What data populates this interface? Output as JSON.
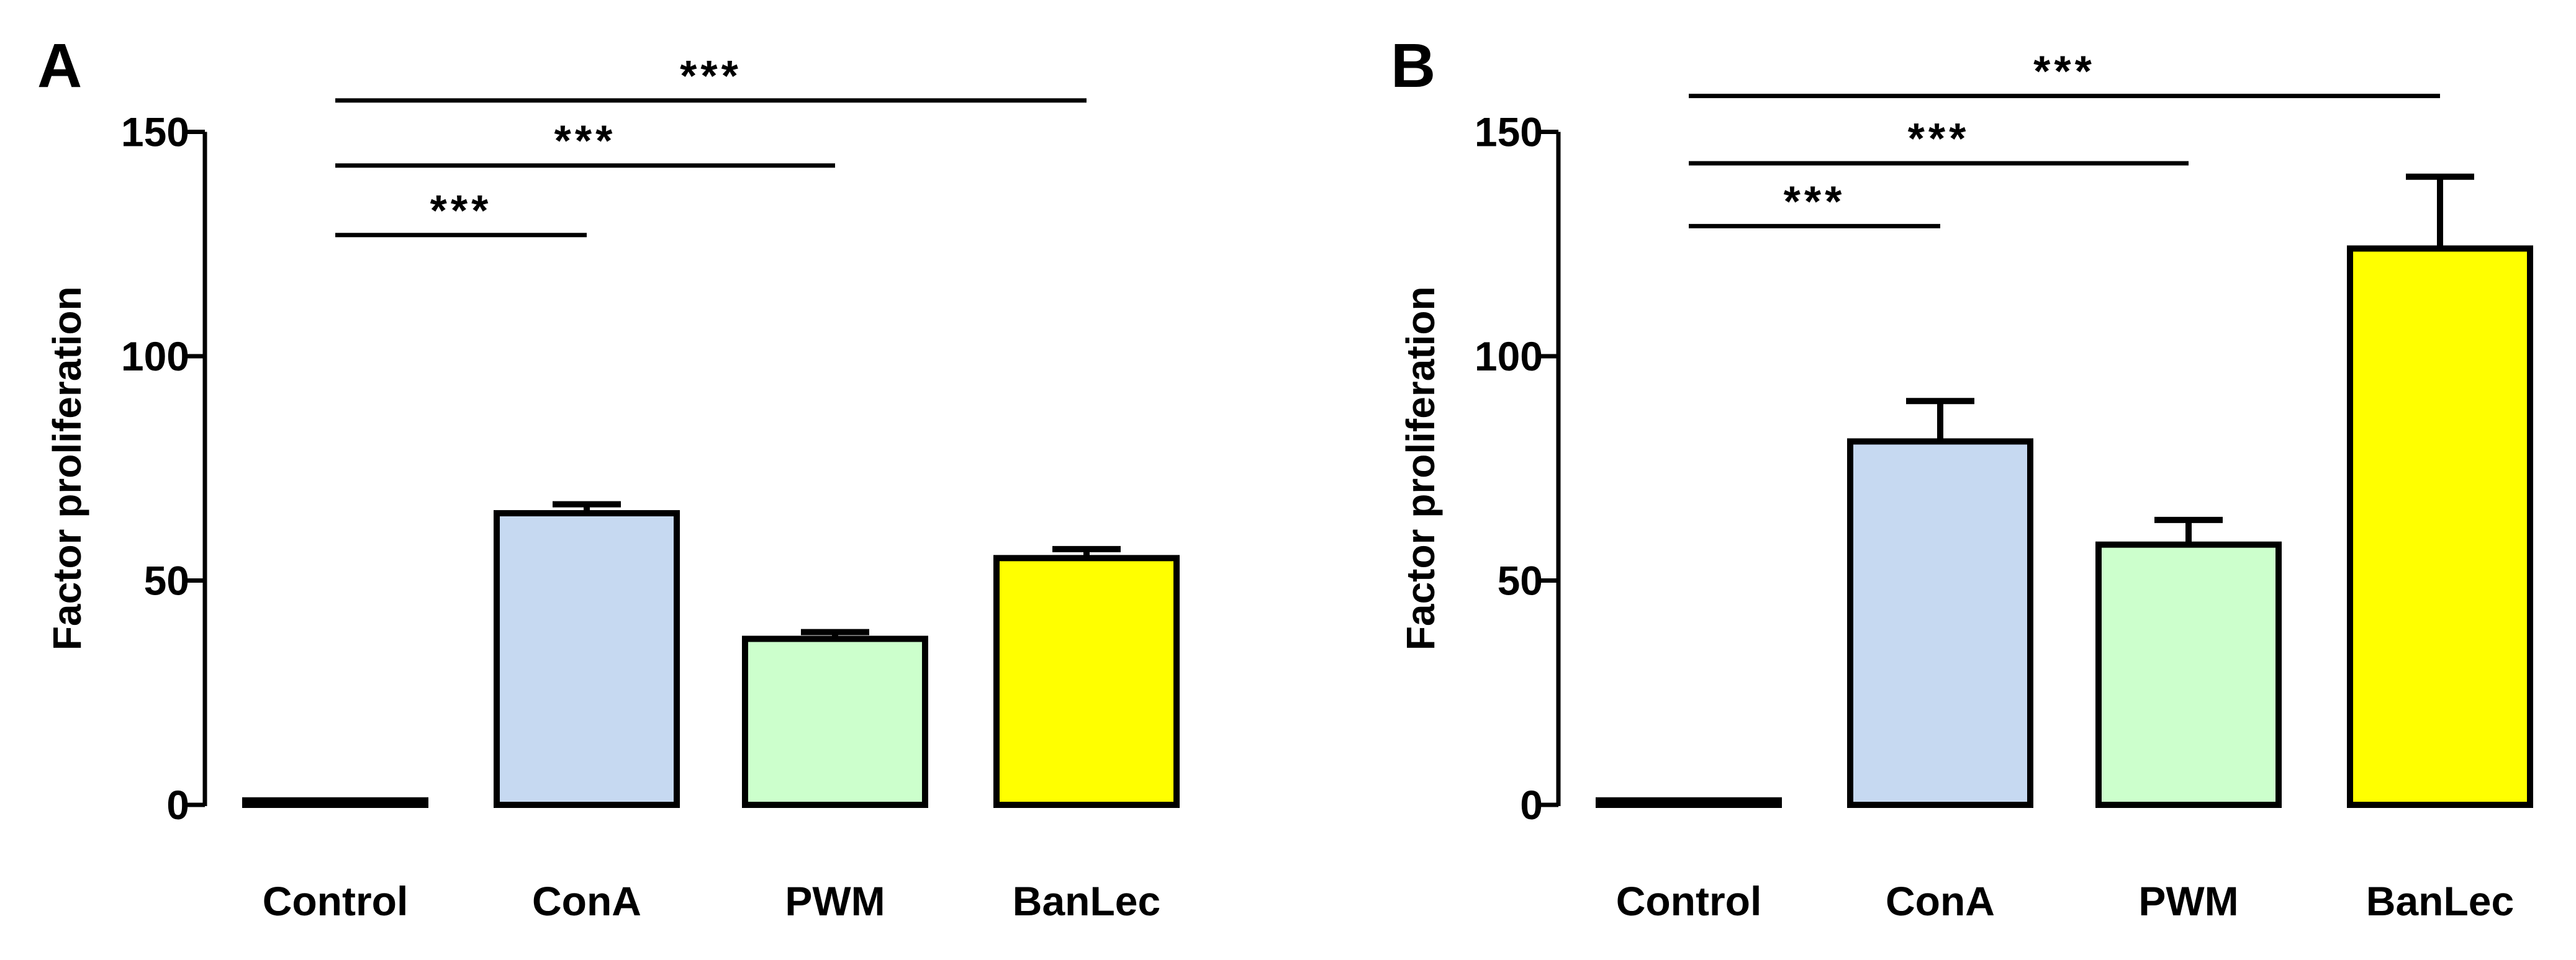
{
  "figure": {
    "panels": [
      "A",
      "B"
    ]
  },
  "chart_data": [
    {
      "type": "bar",
      "panel_label": "A",
      "categories": [
        "Control",
        "ConA",
        "PWM",
        "BanLec"
      ],
      "values": [
        1,
        65,
        37,
        55
      ],
      "errors": [
        0,
        2,
        1.5,
        2
      ],
      "colors": [
        "#ffffff",
        "#c6d9f1",
        "#ccffcc",
        "#ffff00"
      ],
      "title": "",
      "xlabel": "",
      "ylabel": "Factor proliferation",
      "ylim": [
        0,
        150
      ],
      "yticks": [
        0,
        50,
        100,
        150
      ],
      "grid": false,
      "significance": [
        {
          "from": "Control",
          "to": "ConA",
          "level": 127,
          "label": "***"
        },
        {
          "from": "Control",
          "to": "PWM",
          "level": 142.5,
          "label": "***"
        },
        {
          "from": "Control",
          "to": "BanLec",
          "level": 157,
          "label": "***"
        }
      ]
    },
    {
      "type": "bar",
      "panel_label": "B",
      "categories": [
        "Control",
        "ConA",
        "PWM",
        "BanLec"
      ],
      "values": [
        1,
        81,
        58,
        124
      ],
      "errors": [
        0,
        9,
        5.5,
        16
      ],
      "colors": [
        "#ffffff",
        "#c6d9f1",
        "#ccffcc",
        "#ffff00"
      ],
      "title": "",
      "xlabel": "",
      "ylabel": "Factor proliferation",
      "ylim": [
        0,
        150
      ],
      "yticks": [
        0,
        50,
        100,
        150
      ],
      "grid": false,
      "significance": [
        {
          "from": "Control",
          "to": "ConA",
          "level": 129,
          "label": "***"
        },
        {
          "from": "Control",
          "to": "PWM",
          "level": 143,
          "label": "***"
        },
        {
          "from": "Control",
          "to": "BanLec",
          "level": 158,
          "label": "***"
        }
      ]
    }
  ]
}
